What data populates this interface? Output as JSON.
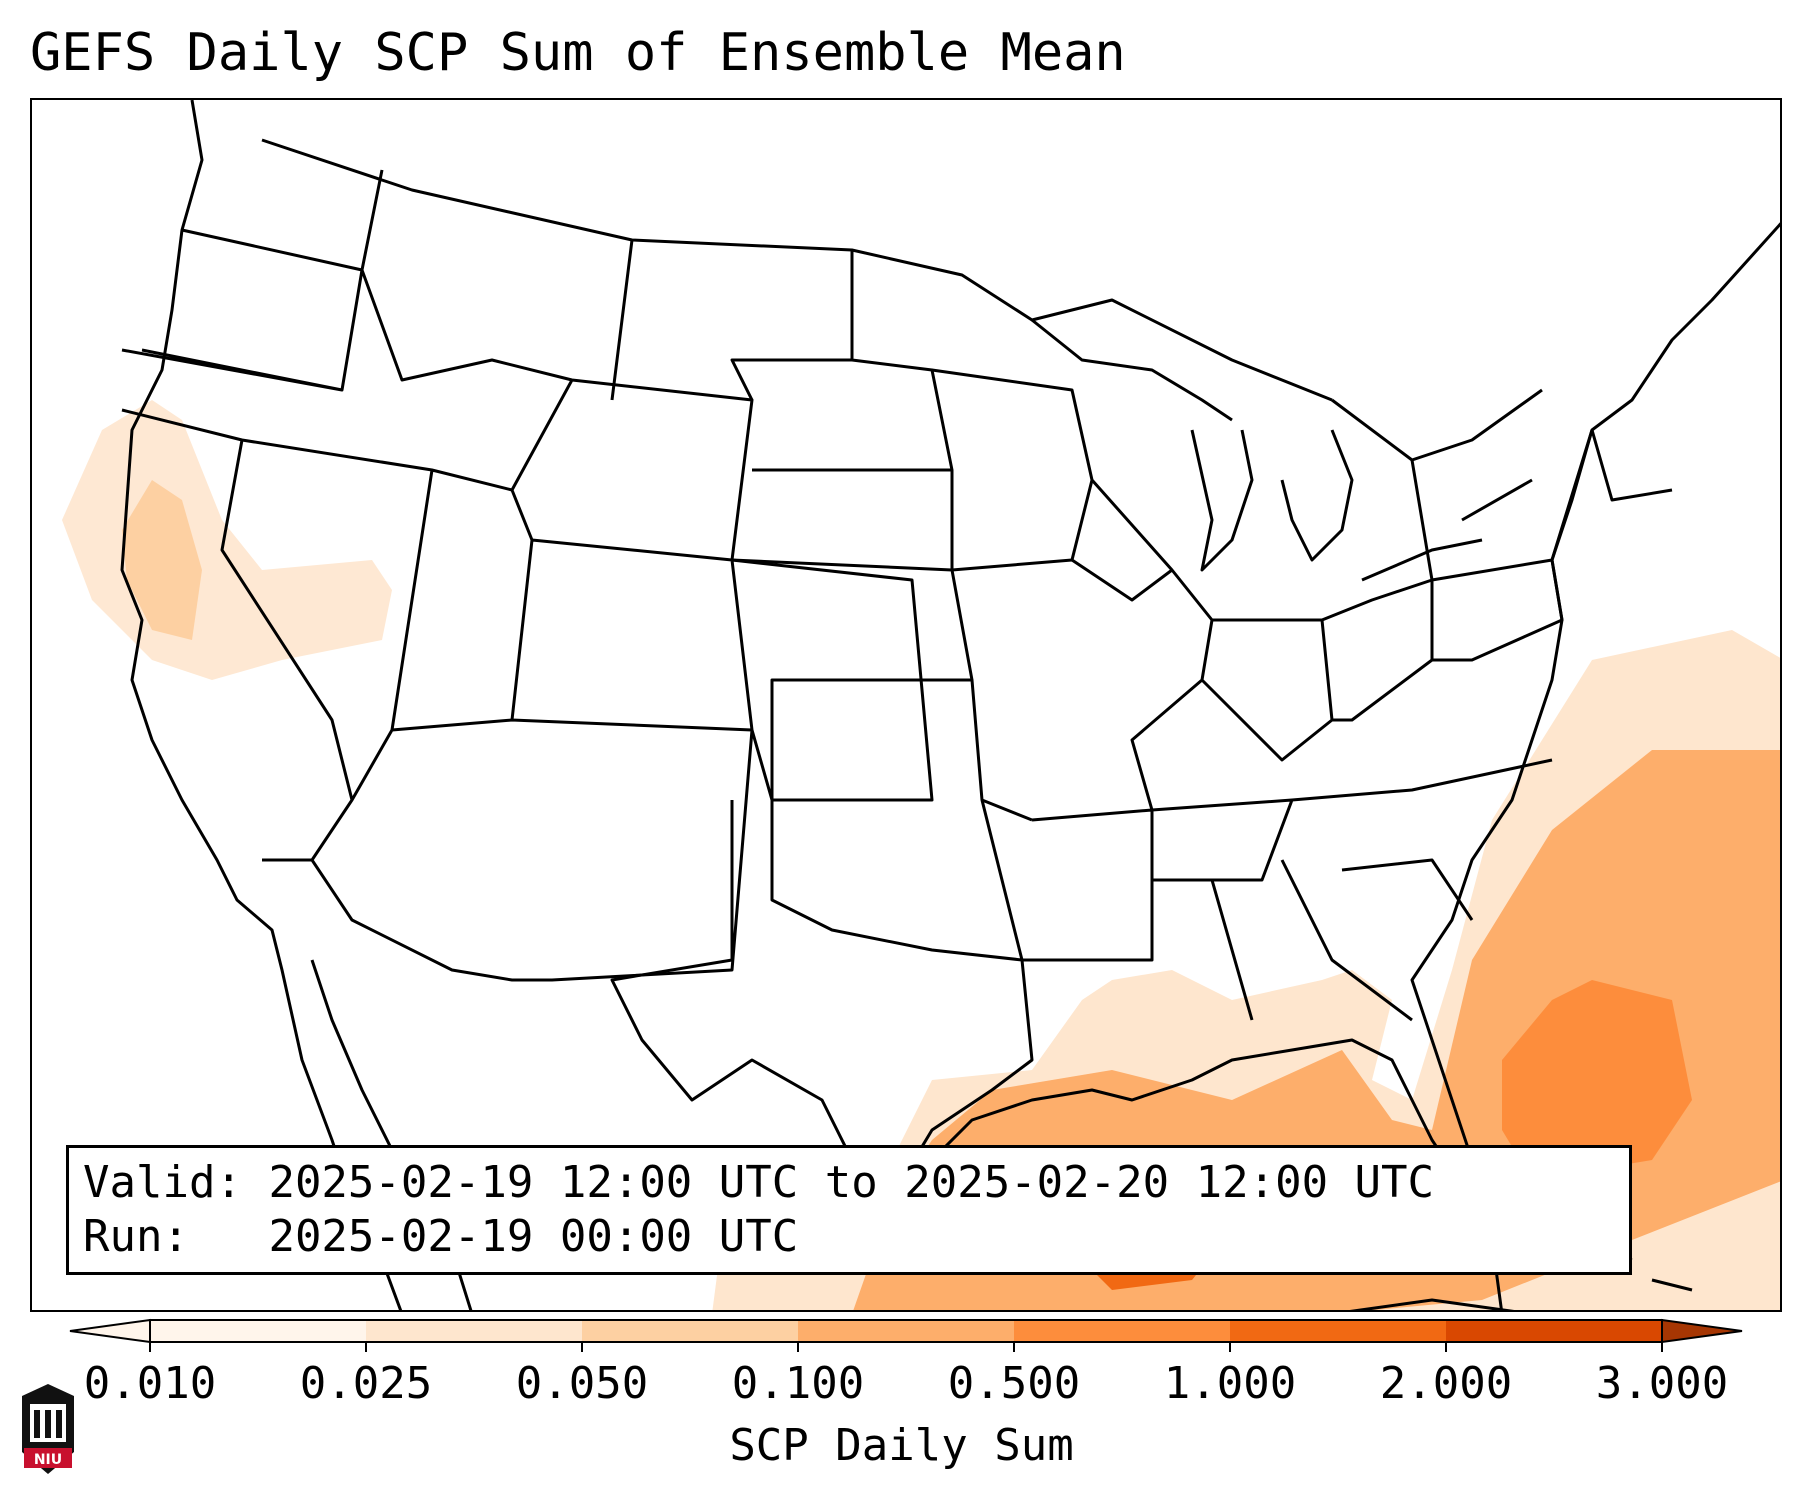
{
  "title": "GEFS Daily SCP Sum of Ensemble Mean",
  "info": {
    "valid_label": "Valid:",
    "valid_value": "2025-02-19 12:00 UTC to 2025-02-20 12:00 UTC",
    "run_label": "Run:",
    "run_value": "2025-02-19 00:00 UTC"
  },
  "colorbar": {
    "label": "SCP Daily Sum",
    "ticks": [
      "0.010",
      "0.025",
      "0.050",
      "0.100",
      "0.500",
      "1.000",
      "2.000",
      "3.000"
    ],
    "colors": [
      "#fff5eb",
      "#fee6ce",
      "#fdd0a2",
      "#fdae6b",
      "#fd8d3c",
      "#f16913",
      "#d94801",
      "#a63603"
    ],
    "extend": "both"
  },
  "map_data": {
    "region": "Contiguous United States",
    "field": "SCP Daily Sum",
    "features": [
      "state boundaries",
      "coastlines",
      "Great Lakes",
      "Gulf of Mexico",
      "Bahamas"
    ]
  },
  "logo": {
    "text": "NIU"
  }
}
